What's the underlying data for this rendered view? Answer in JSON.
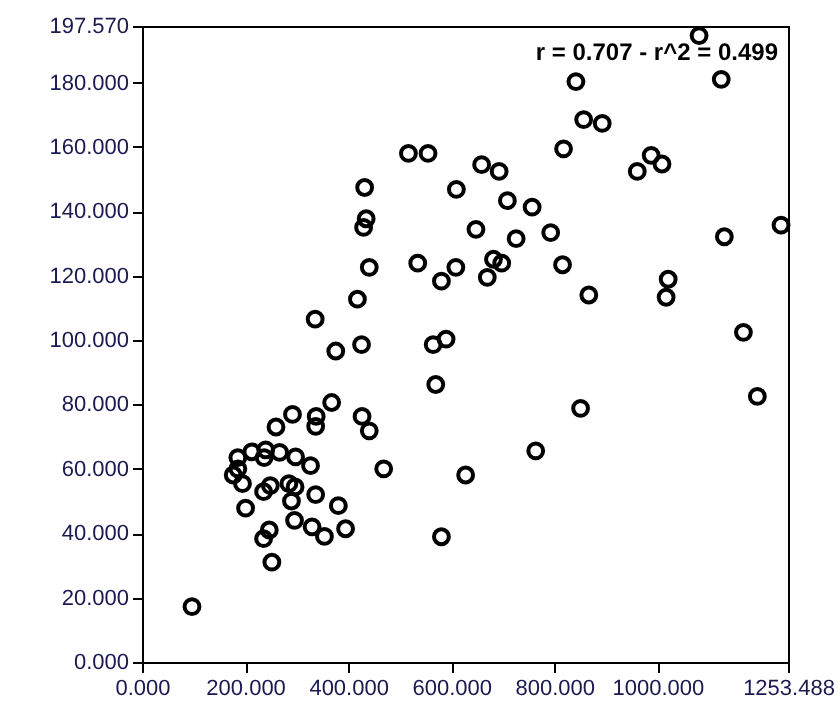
{
  "chart_data": {
    "type": "scatter",
    "annotations": [
      "r = 0.707 - r^2 = 0.499"
    ],
    "x": [
      97,
      252,
      236,
      247,
      296,
      330,
      354,
      395,
      381,
      337,
      290,
      297,
      285,
      249,
      236,
      201,
      195,
      177,
      186,
      469,
      628,
      581,
      327,
      435,
      430,
      441,
      418,
      336,
      376,
      426,
      368,
      292,
      338,
      337,
      260,
      427,
      441,
      186,
      213,
      240,
      237,
      267,
      298,
      535,
      581,
      609,
      648,
      682,
      698,
      670,
      726,
      709,
      565,
      590,
      570,
      793,
      816,
      867,
      1021,
      1017,
      1130,
      1240,
      1167,
      1194,
      851,
      764,
      1081,
      1124,
      842,
      857,
      893,
      818,
      961,
      988,
      1009,
      517,
      555,
      659,
      693,
      610,
      757,
      432
    ],
    "series": [
      {
        "color": "#000000",
        "values": [
          17.2,
          31,
          38.3,
          41,
          44,
          42,
          39,
          41.4,
          48.6,
          52,
          50,
          54.4,
          55.4,
          54.8,
          52.9,
          47.8,
          55.4,
          58.1,
          60,
          60,
          58.1,
          38.9,
          61,
          137.7,
          135,
          122.6,
          112.7,
          106.5,
          96.6,
          98.6,
          80.6,
          76.9,
          76.3,
          73.2,
          73,
          76.3,
          71.8,
          63.5,
          65.3,
          65.9,
          63.5,
          65.1,
          63.7,
          123.9,
          118.3,
          122.6,
          134.4,
          125.1,
          123.9,
          119.5,
          131.5,
          143.3,
          98.6,
          100.3,
          86.2,
          133.4,
          123.4,
          114,
          118.9,
          113.3,
          132.1,
          135.7,
          102.4,
          82.5,
          78.8,
          65.6,
          194.6,
          181,
          180.3,
          168.5,
          167.3,
          159.4,
          152.4,
          157.4,
          154.7,
          158,
          158,
          154.5,
          152.4,
          146.8,
          141.3,
          147.4
        ]
      }
    ],
    "xlim": [
      0,
      1253.488
    ],
    "ylim": [
      0,
      197.57
    ],
    "xticks": [
      {
        "value": 0,
        "label": "0.000"
      },
      {
        "value": 200,
        "label": "200.000"
      },
      {
        "value": 400,
        "label": "400.000"
      },
      {
        "value": 600,
        "label": "600.000"
      },
      {
        "value": 800,
        "label": "800.000"
      },
      {
        "value": 1000,
        "label": "1000.000"
      },
      {
        "value": 1253.488,
        "label": "1253.488"
      }
    ],
    "yticks": [
      {
        "value": 0,
        "label": "0.000"
      },
      {
        "value": 20,
        "label": "20.000"
      },
      {
        "value": 40,
        "label": "40.000"
      },
      {
        "value": 60,
        "label": "60.000"
      },
      {
        "value": 80,
        "label": "80.000"
      },
      {
        "value": 100,
        "label": "100.000"
      },
      {
        "value": 120,
        "label": "120.000"
      },
      {
        "value": 140,
        "label": "140.000"
      },
      {
        "value": 160,
        "label": "160.000"
      },
      {
        "value": 180,
        "label": "180.000"
      },
      {
        "value": 197.57,
        "label": "197.570"
      }
    ],
    "grid": false,
    "marker": "circle"
  }
}
